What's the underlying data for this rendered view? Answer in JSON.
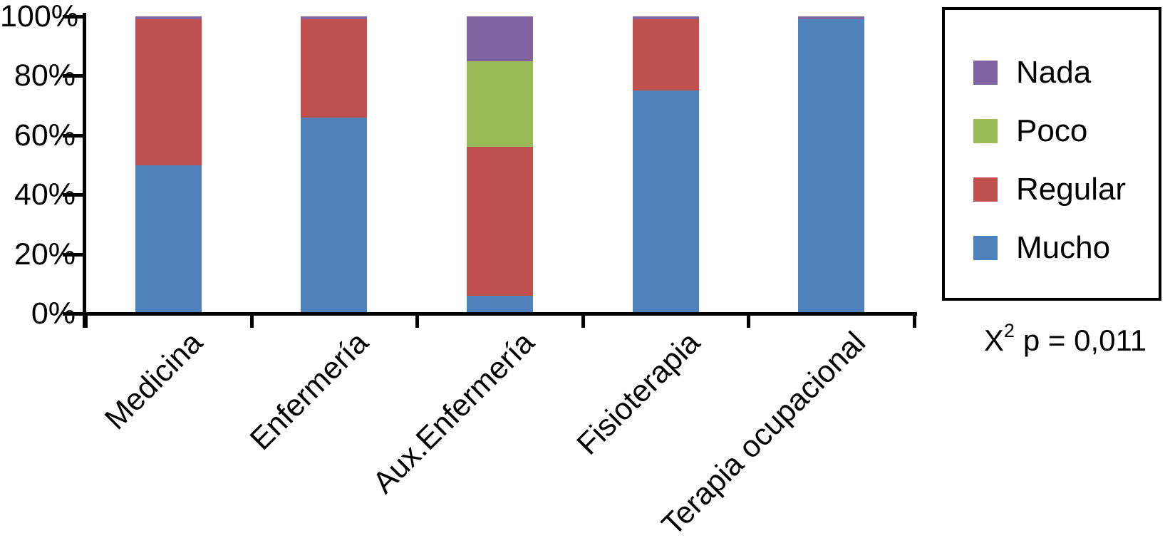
{
  "chart_data": {
    "type": "bar",
    "variant": "stacked-100-percent",
    "title": "",
    "xlabel": "",
    "ylabel": "",
    "ylim": [
      0,
      100
    ],
    "grid": false,
    "axis_color": "#000000",
    "categories": [
      "Medicina",
      "Enfermería",
      "Aux.Enfermería",
      "Fisioterapia",
      "Terapia ocupacional"
    ],
    "series": [
      {
        "name": "Mucho",
        "color": "#4F81BD",
        "values": [
          50,
          66,
          6,
          75,
          99
        ]
      },
      {
        "name": "Regular",
        "color": "#C0504D",
        "values": [
          49,
          33,
          50,
          24,
          0
        ]
      },
      {
        "name": "Poco",
        "color": "#9BBB59",
        "values": [
          0,
          0,
          29,
          0,
          0
        ]
      },
      {
        "name": "Nada",
        "color": "#8064A2",
        "values": [
          1,
          1,
          15,
          1,
          1
        ]
      }
    ],
    "y_ticks": [
      "0%",
      "20%",
      "40%",
      "60%",
      "80%",
      "100%"
    ],
    "legend": {
      "position": "right",
      "order": [
        "Nada",
        "Poco",
        "Regular",
        "Mucho"
      ]
    },
    "annotation": {
      "base": "X",
      "superscript": "2",
      "text": "p = 0,011"
    }
  }
}
